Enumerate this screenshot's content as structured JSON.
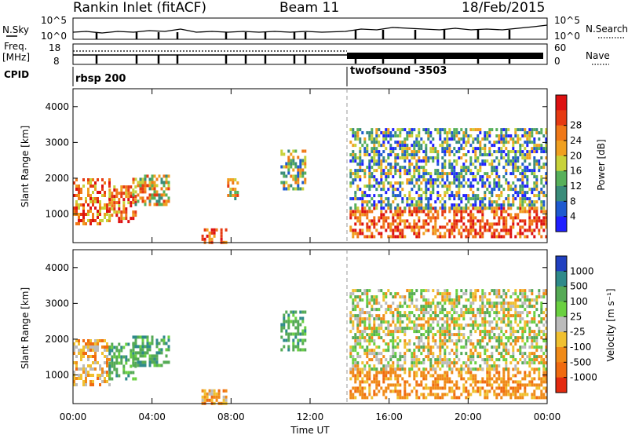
{
  "header": {
    "station": "Rankin Inlet (fitACF)",
    "beam": "Beam 11",
    "date": "18/Feb/2015"
  },
  "nsky_panel": {
    "left_label": "N.Sky",
    "right_label": "N.Search",
    "left_ticks": [
      "10^5",
      "10^0"
    ],
    "right_ticks": [
      "10^5",
      "10^0"
    ]
  },
  "freq_panel": {
    "left_label_line1": "Freq.",
    "left_label_line2": "[MHz]",
    "right_label": "Nave",
    "left_ticks": [
      "18",
      "8"
    ],
    "right_ticks": [
      "60",
      "0"
    ]
  },
  "cpid": {
    "label": "CPID",
    "segments": [
      {
        "name": "rbsp 200",
        "start_hour": 0.0
      },
      {
        "name": "twofsound -3503",
        "start_hour": 14.0
      }
    ]
  },
  "chart_data": [
    {
      "type": "heatmap",
      "title": "Power",
      "xlabel": "Time UT",
      "ylabel": "Slant Range [km]",
      "xlim": [
        0,
        24
      ],
      "ylim": [
        200,
        4500
      ],
      "grid": false,
      "x_ticks": [
        "00:00",
        "04:00",
        "08:00",
        "12:00",
        "16:00",
        "20:00",
        "00:00"
      ],
      "y_ticks": [
        "1000",
        "2000",
        "3000",
        "4000"
      ],
      "colorbar": {
        "label": "Power [dB]",
        "ticks": [
          "4",
          "8",
          "12",
          "16",
          "20",
          "24",
          "28"
        ],
        "colors": [
          "#1f1fff",
          "#1e5ad0",
          "#3a8c7a",
          "#57b05a",
          "#c8d23a",
          "#f0a020",
          "#f07818",
          "#e63a12",
          "#dd1111"
        ]
      },
      "echo_regions": [
        {
          "t_start": 0.0,
          "t_end": 1.8,
          "range_min": 700,
          "range_max": 2000,
          "level": "16-28"
        },
        {
          "t_start": 1.8,
          "t_end": 3.2,
          "range_min": 800,
          "range_max": 1800,
          "level": "16-28"
        },
        {
          "t_start": 3.0,
          "t_end": 4.8,
          "range_min": 1300,
          "range_max": 2100,
          "level": "12-28"
        },
        {
          "t_start": 6.5,
          "t_end": 7.8,
          "range_min": 200,
          "range_max": 600,
          "level": "20-28"
        },
        {
          "t_start": 7.8,
          "t_end": 8.3,
          "range_min": 1400,
          "range_max": 2000,
          "level": "12-24"
        },
        {
          "t_start": 10.5,
          "t_end": 11.7,
          "range_min": 1700,
          "range_max": 2800,
          "level": "8-24"
        },
        {
          "t_start": 14.0,
          "t_end": 24.0,
          "range_min": 400,
          "range_max": 1200,
          "level": "20-28"
        },
        {
          "t_start": 14.0,
          "t_end": 24.0,
          "range_min": 1200,
          "range_max": 3400,
          "level": "4-20"
        }
      ]
    },
    {
      "type": "heatmap",
      "title": "Velocity",
      "xlabel": "Time UT",
      "ylabel": "Slant Range [km]",
      "xlim": [
        0,
        24
      ],
      "ylim": [
        200,
        4500
      ],
      "grid": false,
      "x_ticks": [
        "00:00",
        "04:00",
        "08:00",
        "12:00",
        "16:00",
        "20:00",
        "00:00"
      ],
      "y_ticks": [
        "1000",
        "2000",
        "3000",
        "4000"
      ],
      "colorbar": {
        "label": "Velocity [m s⁻¹]",
        "ticks": [
          "1000",
          "500",
          "100",
          "25",
          "-25",
          "-100",
          "-500",
          "-1000"
        ],
        "colors": [
          "#2040c0",
          "#2e8a8a",
          "#55aa55",
          "#6ad040",
          "#bbbbbb",
          "#f0c030",
          "#f08a18",
          "#f06a10",
          "#e32a10"
        ]
      },
      "echo_regions": [
        {
          "t_start": 0.0,
          "t_end": 1.8,
          "range_min": 700,
          "range_max": 2000,
          "level": "-500 to -25"
        },
        {
          "t_start": 1.8,
          "t_end": 3.2,
          "range_min": 900,
          "range_max": 1900,
          "level": "25 to 500"
        },
        {
          "t_start": 3.0,
          "t_end": 4.8,
          "range_min": 1300,
          "range_max": 2100,
          "level": "25 to 500"
        },
        {
          "t_start": 6.5,
          "t_end": 7.8,
          "range_min": 200,
          "range_max": 600,
          "level": "-500 to -25"
        },
        {
          "t_start": 10.5,
          "t_end": 11.7,
          "range_min": 1700,
          "range_max": 2800,
          "level": "25 to 500"
        },
        {
          "t_start": 14.0,
          "t_end": 24.0,
          "range_min": 400,
          "range_max": 1200,
          "level": "-500 to -100"
        },
        {
          "t_start": 14.0,
          "t_end": 24.0,
          "range_min": 1200,
          "range_max": 3400,
          "level": "-100 to 100"
        }
      ]
    }
  ]
}
